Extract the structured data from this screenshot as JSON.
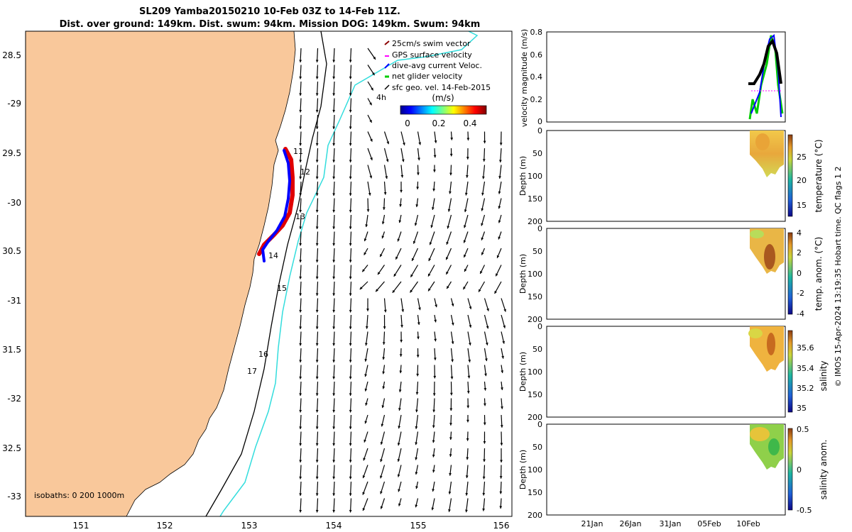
{
  "header": {
    "title_line1": "SL209 Yamba20150210 10-Feb 03Z to 14-Feb 11Z.",
    "title_line2": "Dist. over ground: 149km. Dist. swum: 94km. Mission DOG: 149km. Swum: 94km"
  },
  "map": {
    "lat_ticks": [
      "28.5",
      "-29",
      "29.5",
      "-30",
      "30.5",
      "-31",
      "31.5",
      "-32",
      "32.5",
      "-33"
    ],
    "lon_ticks": [
      "151",
      "152",
      "153",
      "154",
      "155",
      "156"
    ],
    "isobaths_label": "isobaths: 0   200  1000m",
    "legend": [
      {
        "label": "25cm/s swim vector",
        "color": "#8b0000"
      },
      {
        "label": "GPS surface velocity",
        "color": "#ff00ff"
      },
      {
        "label": "dive-avg current Veloc.",
        "color": "#0000ff"
      },
      {
        "label": "net glider velocity",
        "color": "#00cc00"
      },
      {
        "label": "sfc geo. vel. 14-Feb-2015",
        "color": "#000000"
      }
    ],
    "legend_4h": "4h",
    "colorbar_title": "(m/s)",
    "colorbar_ticks": [
      "0",
      "0.2",
      "0.4"
    ],
    "day_labels": [
      "11",
      "12",
      "13",
      "14",
      "15",
      "16",
      "17"
    ],
    "colors": {
      "land": "#f9c89b",
      "isobath_200": "#000000",
      "isobath_1000": "#33dddd",
      "track": "#e00000",
      "current": "#0000ff"
    }
  },
  "panels": {
    "time_ticks": [
      "21Jan",
      "26Jan",
      "31Jan",
      "05Feb",
      "10Feb"
    ],
    "depth_ticks": [
      "0",
      "50",
      "100",
      "150",
      "200"
    ],
    "depth_label": "Depth (m)",
    "velocity": {
      "ylabel": "velocity magnitude (m/s)",
      "yticks": [
        "0",
        "0.2",
        "0.4",
        "0.6",
        "0.8"
      ]
    },
    "temperature": {
      "cbar_label": "temperature (°C)",
      "cbar_ticks": [
        "15",
        "20",
        "25"
      ]
    },
    "temp_anom": {
      "cbar_label": "temp. anom. (°C)",
      "cbar_ticks": [
        "-4",
        "-2",
        "0",
        "2",
        "4"
      ]
    },
    "salinity": {
      "cbar_label": "salinity",
      "cbar_ticks": [
        "35",
        "35.2",
        "35.4",
        "35.6"
      ]
    },
    "salinity_anom": {
      "cbar_label": "salinity anom.",
      "cbar_ticks": [
        "-0.5",
        "0",
        "0.5"
      ]
    }
  },
  "side_note": "© IMOS 15-Apr-2024 13:19:35 Hobart time. QC flags 1  2",
  "chart_data": [
    {
      "type": "map",
      "title": "SL209 Yamba20150210 10-Feb 03Z to 14-Feb 11Z.",
      "xlim": [
        150.4,
        156.1
      ],
      "ylim": [
        -33.2,
        -28.25
      ],
      "glider_track": [
        [
          153.42,
          -29.45
        ],
        [
          153.5,
          -29.6
        ],
        [
          153.52,
          -29.95
        ],
        [
          153.45,
          -30.15
        ],
        [
          153.32,
          -30.35
        ],
        [
          153.15,
          -30.52
        ]
      ],
      "isobaths_m": [
        0,
        200,
        1000
      ]
    },
    {
      "type": "line",
      "ylabel": "velocity magnitude (m/s)",
      "ylim": [
        0,
        0.8
      ],
      "x": [
        "11-Feb",
        "12-Feb",
        "13-Feb",
        "14-Feb"
      ],
      "series": [
        {
          "values": [
            0.34,
            0.45,
            0.72,
            0.3
          ]
        }
      ]
    },
    {
      "type": "heatmap",
      "ylabel": "Depth (m)",
      "ylim": [
        0,
        200
      ],
      "colorbar_range": [
        12,
        29
      ],
      "colorbar_label": "temperature (°C)"
    },
    {
      "type": "heatmap",
      "ylabel": "Depth (m)",
      "ylim": [
        0,
        200
      ],
      "colorbar_range": [
        -4,
        4
      ],
      "colorbar_label": "temp. anom. (°C)"
    },
    {
      "type": "heatmap",
      "ylabel": "Depth (m)",
      "ylim": [
        0,
        200
      ],
      "colorbar_range": [
        34.9,
        35.75
      ],
      "colorbar_label": "salinity"
    },
    {
      "type": "heatmap",
      "ylabel": "Depth (m)",
      "ylim": [
        0,
        200
      ],
      "colorbar_range": [
        -0.5,
        0.5
      ],
      "colorbar_label": "salinity anom."
    }
  ]
}
